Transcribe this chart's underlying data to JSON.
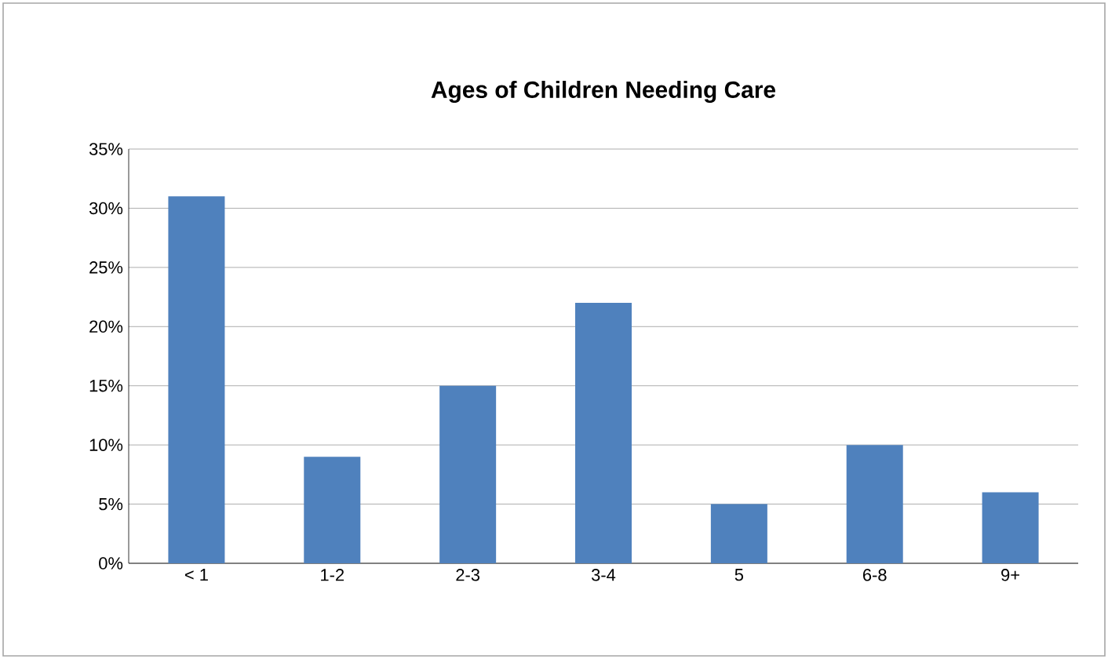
{
  "chart_data": {
    "type": "bar",
    "title": "Ages of Children Needing Care",
    "categories": [
      "< 1",
      "1-2",
      "2-3",
      "3-4",
      "5",
      "6-8",
      "9+"
    ],
    "values": [
      31,
      9,
      15,
      22,
      5,
      10,
      6
    ],
    "color": "#4f81bd",
    "ylim": [
      0,
      35
    ],
    "yticks": [
      {
        "value": 0,
        "label": "0%"
      },
      {
        "value": 5,
        "label": "5%"
      },
      {
        "value": 10,
        "label": "10%"
      },
      {
        "value": 15,
        "label": "15%"
      },
      {
        "value": 20,
        "label": "20%"
      },
      {
        "value": 25,
        "label": "25%"
      },
      {
        "value": 30,
        "label": "30%"
      },
      {
        "value": 35,
        "label": "35%"
      }
    ],
    "grid": "y"
  }
}
